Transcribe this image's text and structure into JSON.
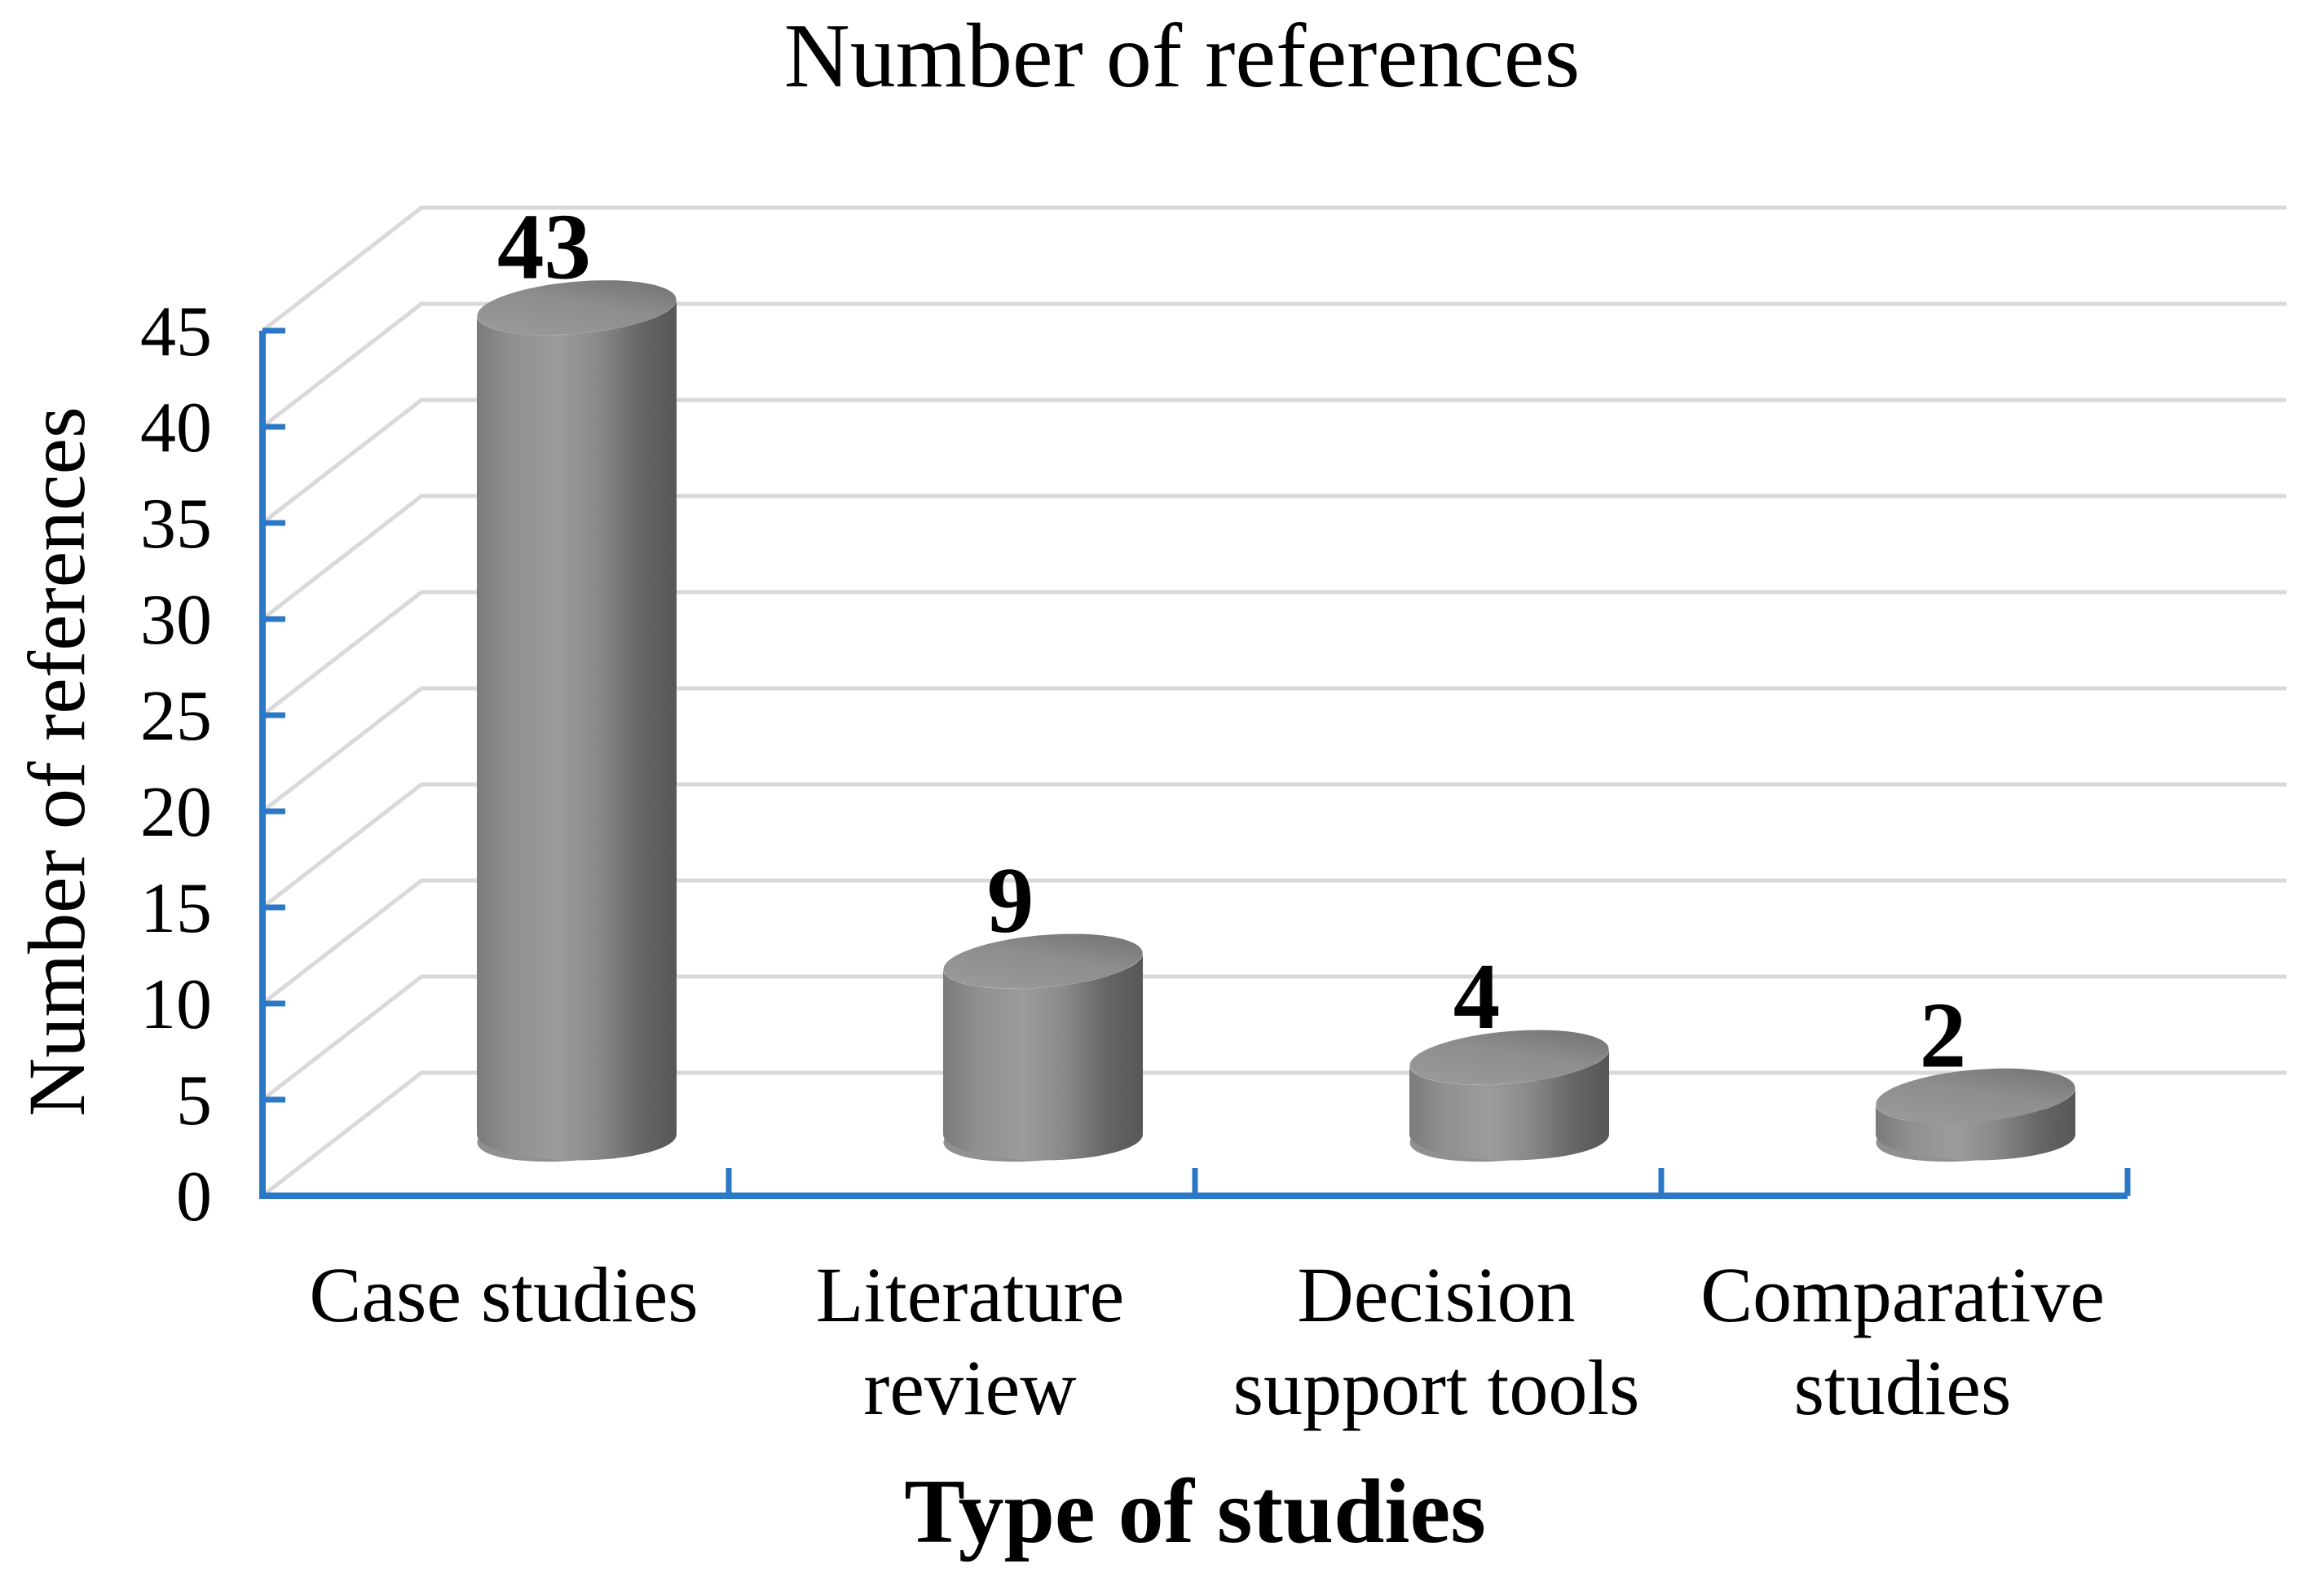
{
  "page": {
    "background": "#ffffff"
  },
  "chart_data": {
    "type": "bar",
    "render_style": "3d-cylinder",
    "title": "Number of references",
    "xlabel": "Type of studies",
    "ylabel": "Number of references",
    "categories": [
      "Case studies",
      "Literature review",
      "Decision support tools",
      "Comparative studies"
    ],
    "category_lines": [
      [
        "Case studies"
      ],
      [
        "Literature",
        "review"
      ],
      [
        "Decision",
        "support tools"
      ],
      [
        "Comparative",
        "studies"
      ]
    ],
    "values": [
      43,
      9,
      4,
      2
    ],
    "data_labels": [
      "43",
      "9",
      "4",
      "2"
    ],
    "ylim": [
      0,
      45
    ],
    "ytick_step": 5,
    "yticks": [
      "0",
      "5",
      "10",
      "15",
      "20",
      "25",
      "30",
      "35",
      "40",
      "45"
    ],
    "grid": true,
    "legend": false,
    "colors": {
      "axis": "#2B78C6",
      "gridline": "#D9D9D9",
      "text": "#000000",
      "cylinder_edge_light": "#7b7b7b",
      "cylinder_highlight": "#9c9c9c",
      "cylinder_mid": "#8a8a8a",
      "cylinder_dark": "#575757",
      "cylinder_top_light": "#9d9d9d",
      "cylinder_top_dark": "#6e6e6e",
      "cylinder_bottom": "#909090"
    }
  }
}
